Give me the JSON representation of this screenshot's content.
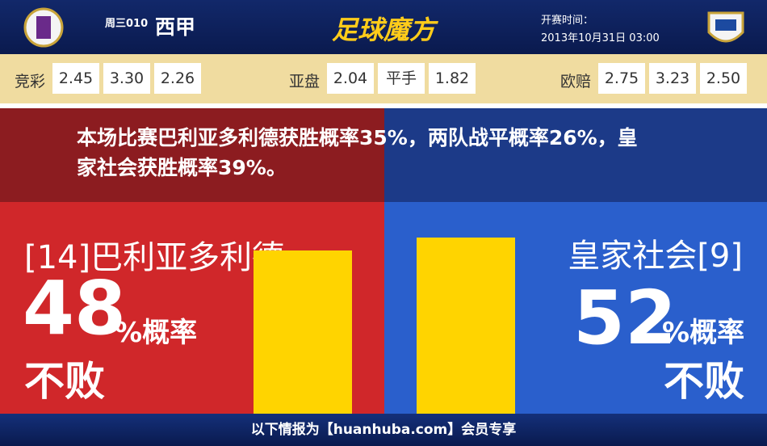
{
  "header": {
    "match_no": "周三010",
    "league": "西甲",
    "logo_text": "足球魔方",
    "kickoff_label": "开赛时间：",
    "kickoff_time": "2013年10月31日 03:00"
  },
  "odds": [
    {
      "label": "竞彩",
      "values": [
        "2.45",
        "3.30",
        "2.26"
      ]
    },
    {
      "label": "亚盘",
      "values": [
        "2.04",
        "平手",
        "1.82"
      ]
    },
    {
      "label": "欧赔",
      "values": [
        "2.75",
        "3.23",
        "2.50"
      ]
    }
  ],
  "summary": "本场比赛巴利亚多利德获胜概率35%，两队战平概率26%，皇家社会获胜概率39%。",
  "home": {
    "name": "[14]巴利亚多利德",
    "percent": 48,
    "unit": "%概率",
    "result": "不败"
  },
  "away": {
    "name": "皇家社会[9]",
    "percent": 52,
    "unit": "%概率",
    "result": "不败"
  },
  "footer": "以下情报为【huanhuba.com】会员专享"
}
